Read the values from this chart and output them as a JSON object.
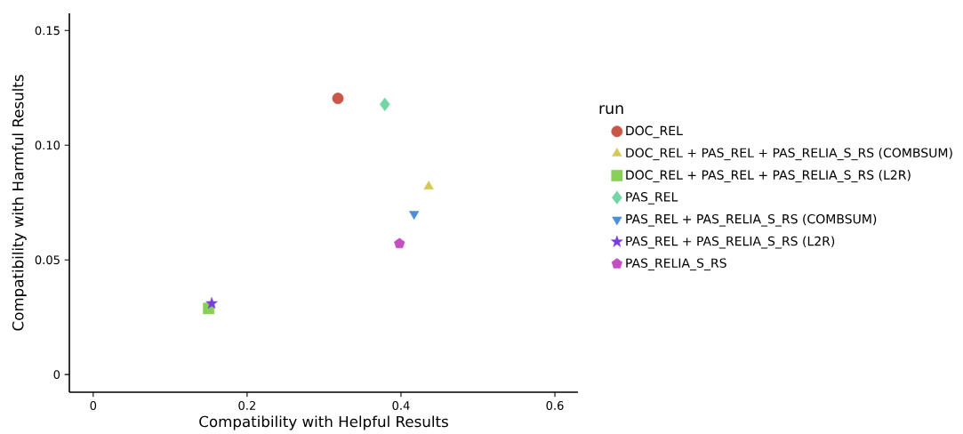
{
  "chart_data": {
    "type": "scatter",
    "xlabel": "Compatibility with Helpful Results",
    "ylabel": "Compatibility with Harmful Results",
    "legend_title": "run",
    "legend": "right",
    "xlim": [
      -0.031,
      0.63
    ],
    "ylim": [
      -0.0077,
      0.1575
    ],
    "xticks": [
      0,
      0.2,
      0.4,
      0.6
    ],
    "yticks": [
      0,
      0.05,
      {
        "value": 0.1,
        "label": "0.10"
      },
      0.15
    ],
    "grid": false,
    "series": [
      {
        "name": "DOC_REL",
        "color": "#c8574a",
        "marker": "circle",
        "x": [
          0.318
        ],
        "values": [
          0.1204
        ]
      },
      {
        "name": "DOC_REL + PAS_REL + PAS_RELIA_S_RS (COMBSUM)",
        "color": "#d4c955",
        "marker": "triangle",
        "x": [
          0.436
        ],
        "values": [
          0.082
        ]
      },
      {
        "name": "DOC_REL + PAS_REL + PAS_RELIA_S_RS (L2R)",
        "color": "#88d05a",
        "marker": "square",
        "x": [
          0.15
        ],
        "values": [
          0.0288
        ]
      },
      {
        "name": "PAS_REL",
        "color": "#73d6a4",
        "marker": "diamond",
        "x": [
          0.379
        ],
        "values": [
          0.1178
        ]
      },
      {
        "name": "PAS_REL + PAS_RELIA_S_RS (COMBSUM)",
        "color": "#4a8fd8",
        "marker": "triangle_down",
        "x": [
          0.417
        ],
        "values": [
          0.07
        ]
      },
      {
        "name": "PAS_REL + PAS_RELIA_S_RS (L2R)",
        "color": "#7a3be0",
        "marker": "star",
        "x": [
          0.154
        ],
        "values": [
          0.031
        ]
      },
      {
        "name": "PAS_RELIA_S_RS",
        "color": "#c44fc0",
        "x": [
          0.398
        ],
        "values": [
          0.0571
        ]
      }
    ]
  }
}
